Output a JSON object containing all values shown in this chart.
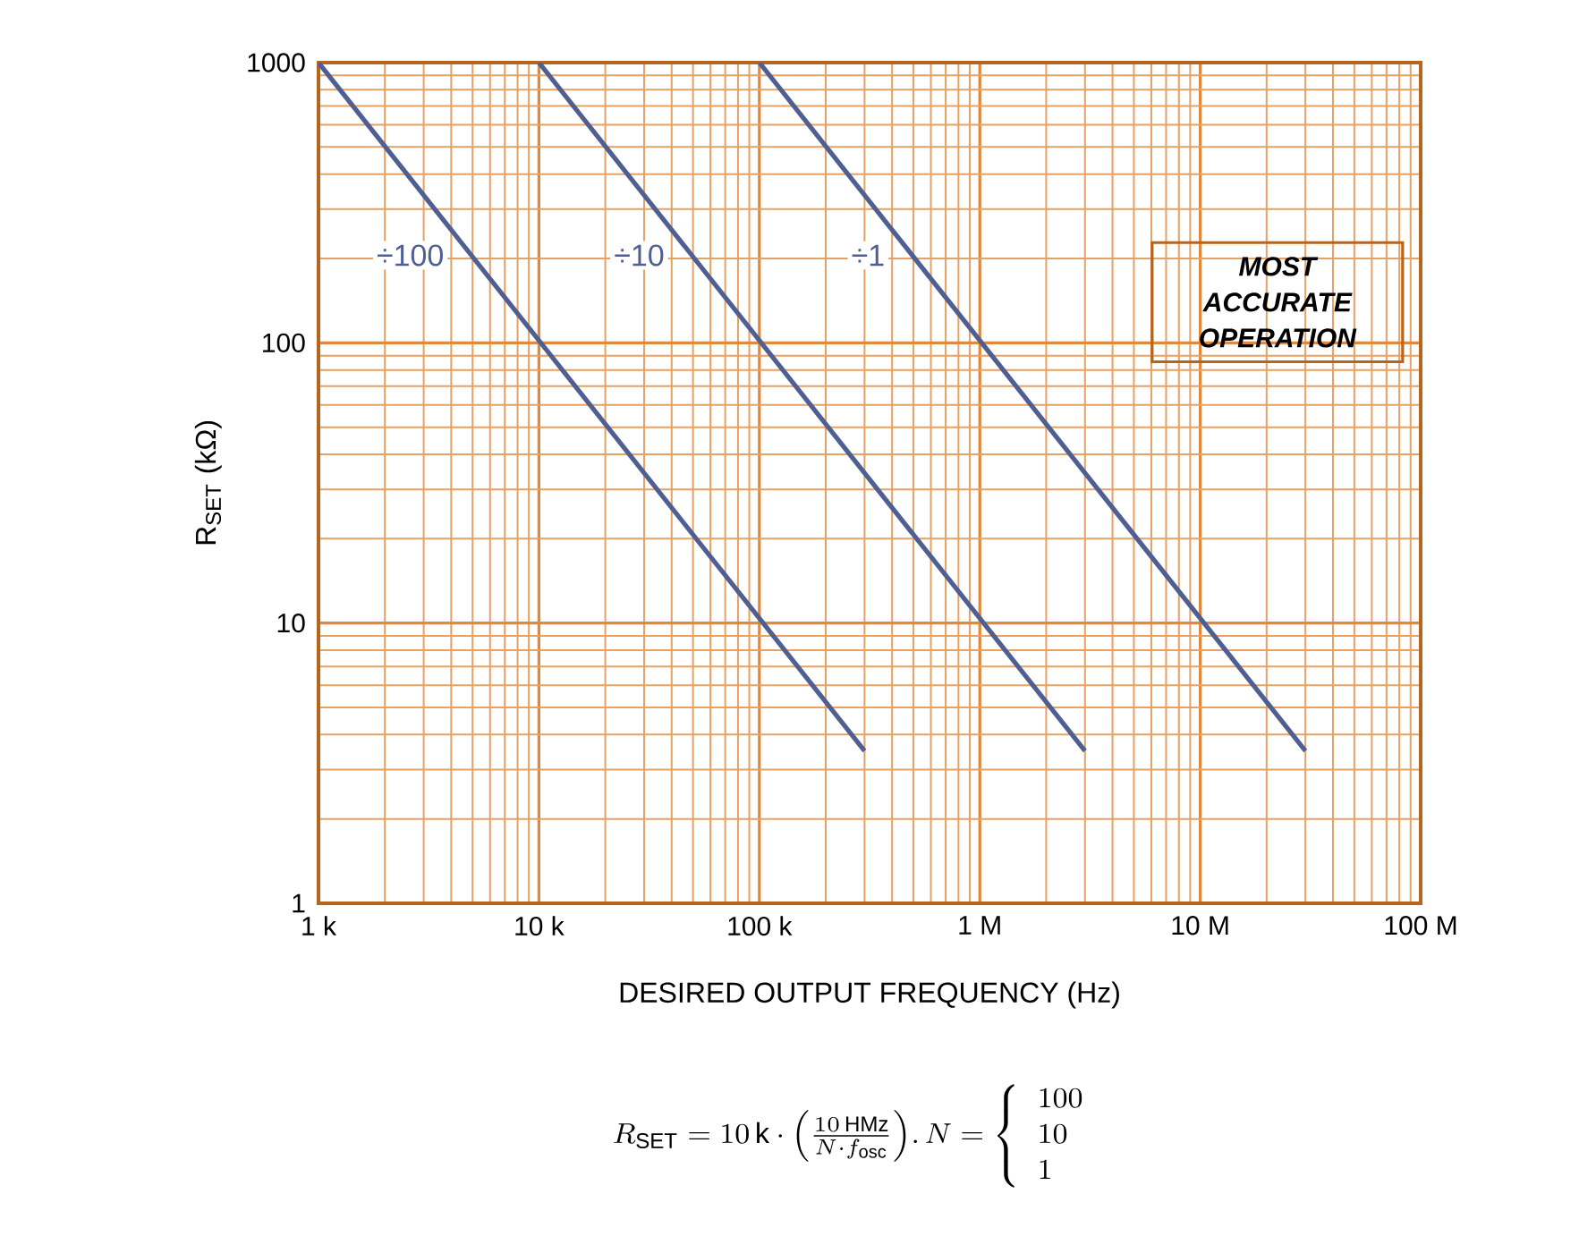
{
  "chart_data": {
    "type": "line",
    "xlabel": "DESIRED OUTPUT FREQUENCY (Hz)",
    "ylabel": "R$_{SET}$ (kΩ)",
    "log": "xy",
    "grid": true,
    "marker": "none",
    "line_style": "solid",
    "xlim": [
      1000,
      100000000
    ],
    "ylim": [
      1,
      1000
    ],
    "xticks": [
      {
        "value": 1000,
        "label": "1 k"
      },
      {
        "value": 10000,
        "label": "10 k"
      },
      {
        "value": 100000,
        "label": "100 k"
      },
      {
        "value": 1000000,
        "label": "1 M"
      },
      {
        "value": 10000000,
        "label": "10 M"
      },
      {
        "value": 100000000,
        "label": "100 M"
      }
    ],
    "yticks": [
      1,
      10,
      100,
      1000
    ],
    "series": [
      {
        "name": "÷100",
        "color": "#4f5f92",
        "x": [
          1000,
          300000
        ],
        "values": [
          1000,
          3.5
        ]
      },
      {
        "name": "÷10",
        "color": "#4f5f92",
        "x": [
          10000,
          3000000
        ],
        "values": [
          1000,
          3.5
        ]
      },
      {
        "name": "÷1",
        "color": "#4f5f92",
        "x": [
          100000,
          30000000
        ],
        "values": [
          1000,
          3.5
        ]
      }
    ],
    "annotations": [
      "MOST ACCURATE OPERATION",
      "R_{\\mathrm{SET}} = 10\\,\\mathrm{k}\\cdot\\left(\\frac{10\\,\\mathrm{HMz}}{N\\cdot f_{\\mathrm{osc}}}\\right)\\!.\\,N = \\left\\{\\begin{array}{l}100\\\\ 10\\\\ 1\\end{array}\\right."
    ]
  }
}
